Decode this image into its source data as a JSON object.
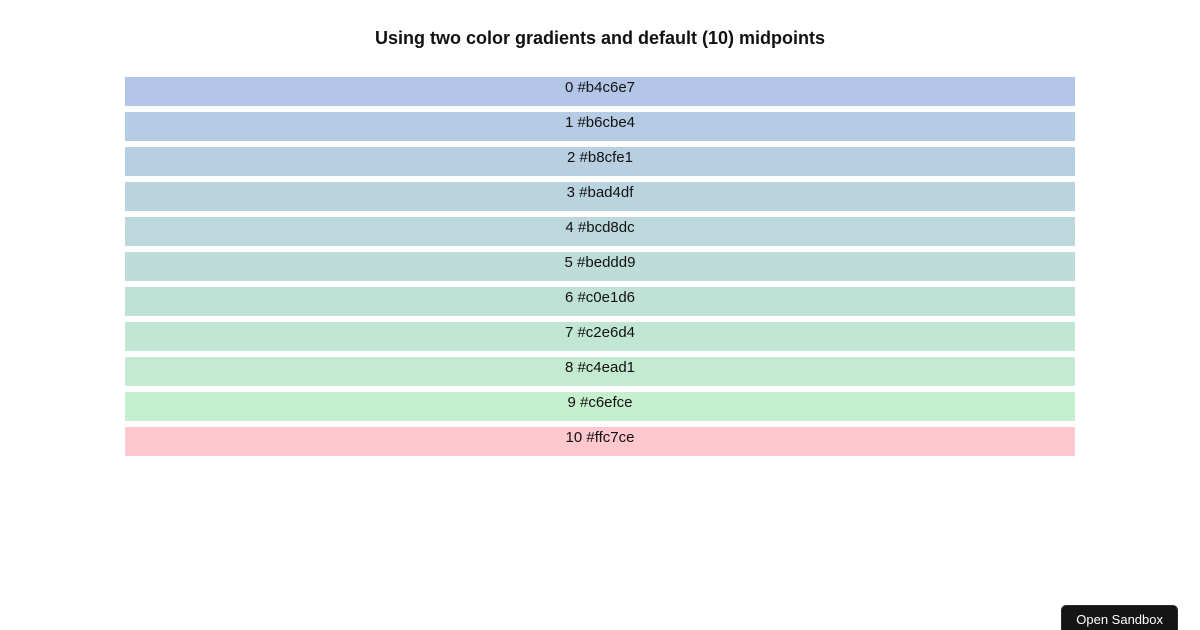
{
  "page": {
    "title": "Using two color gradients and default (10) midpoints",
    "background": "#ffffff"
  },
  "chart_data": {
    "type": "bar",
    "title": "Using two color gradients and default (10) midpoints",
    "orientation": "horizontal-swatch-rows",
    "categories": [
      "0",
      "1",
      "2",
      "3",
      "4",
      "5",
      "6",
      "7",
      "8",
      "9",
      "10"
    ],
    "swatches": [
      {
        "index": 0,
        "hex": "#b4c6e7",
        "label": "0 #b4c6e7"
      },
      {
        "index": 1,
        "hex": "#b6cbe4",
        "label": "1 #b6cbe4"
      },
      {
        "index": 2,
        "hex": "#b8cfe1",
        "label": "2 #b8cfe1"
      },
      {
        "index": 3,
        "hex": "#bad4df",
        "label": "3 #bad4df"
      },
      {
        "index": 4,
        "hex": "#bcd8dc",
        "label": "4 #bcd8dc"
      },
      {
        "index": 5,
        "hex": "#beddd9",
        "label": "5 #beddd9"
      },
      {
        "index": 6,
        "hex": "#c0e1d6",
        "label": "6 #c0e1d6"
      },
      {
        "index": 7,
        "hex": "#c2e6d4",
        "label": "7 #c2e6d4"
      },
      {
        "index": 8,
        "hex": "#c4ead1",
        "label": "8 #c4ead1"
      },
      {
        "index": 9,
        "hex": "#c6efce",
        "label": "9 #c6efce"
      },
      {
        "index": 10,
        "hex": "#ffc7ce",
        "label": "10 #ffc7ce"
      }
    ]
  },
  "sandbox_button": {
    "label": "Open Sandbox",
    "background": "#151515",
    "text_color": "#ffffff"
  }
}
